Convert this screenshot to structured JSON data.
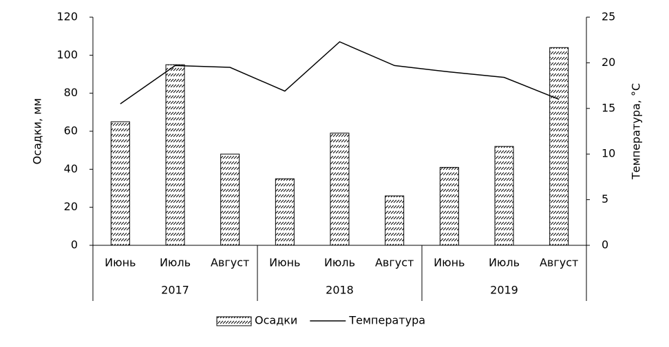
{
  "chart_data": {
    "type": "bar",
    "categories": [
      "Июнь",
      "Июль",
      "Август",
      "Июнь",
      "Июль",
      "Август",
      "Июнь",
      "Июль",
      "Август"
    ],
    "groups": [
      "2017",
      "2018",
      "2019"
    ],
    "ylabel": "Осадки, мм",
    "y2label": "Температура, °С",
    "ylim": [
      0,
      120
    ],
    "yticks": [
      0,
      20,
      40,
      60,
      80,
      100,
      120
    ],
    "y2lim": [
      0,
      25
    ],
    "y2ticks": [
      0,
      5,
      10,
      15,
      20,
      25
    ],
    "legend": "bottom",
    "series": [
      {
        "name": "Осадки",
        "type": "bar",
        "color": "#000000",
        "values": [
          65,
          95,
          48,
          35,
          59,
          26,
          41,
          52,
          104
        ]
      },
      {
        "name": "Температура",
        "type": "line",
        "axis": "y2",
        "color": "#000000",
        "values": [
          15.5,
          19.7,
          19.5,
          16.9,
          22.3,
          19.7,
          19.0,
          18.4,
          16.0
        ]
      }
    ]
  }
}
